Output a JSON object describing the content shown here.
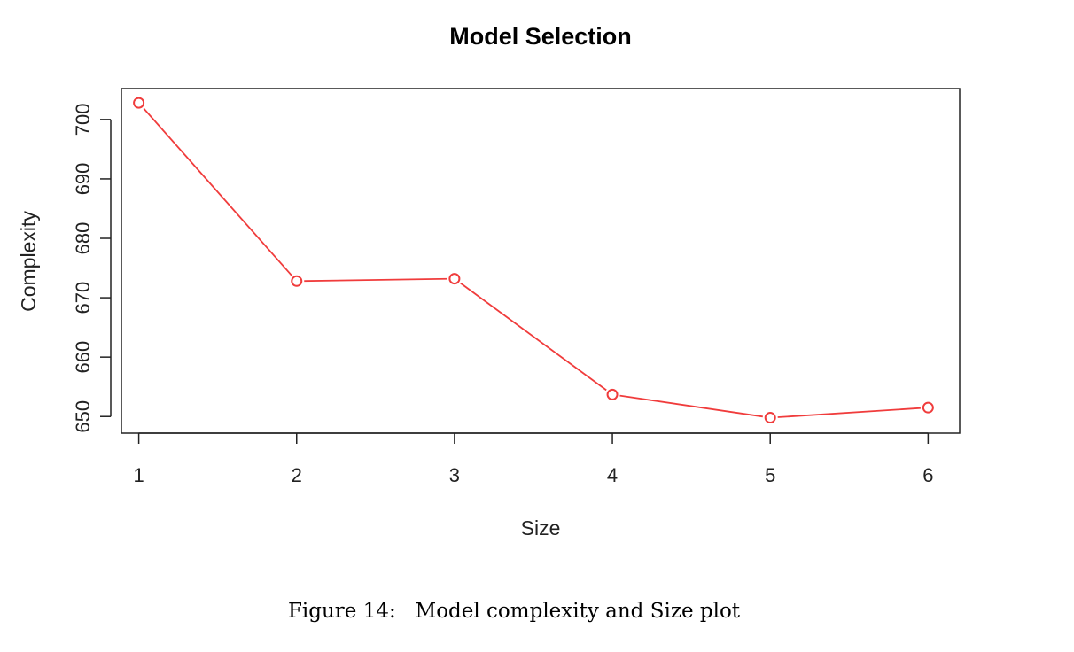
{
  "caption": "Figure 14:   Model complexity and Size plot",
  "chart_data": {
    "type": "line",
    "title": "Model Selection",
    "xlabel": "Size",
    "ylabel": "Complexity",
    "x": [
      1,
      2,
      3,
      4,
      5,
      6
    ],
    "series": [
      {
        "values": [
          702.8,
          672.8,
          673.2,
          653.7,
          649.8,
          651.5
        ]
      }
    ],
    "x_ticks": [
      1,
      2,
      3,
      4,
      5,
      6
    ],
    "y_ticks": [
      650,
      660,
      670,
      680,
      690,
      700
    ],
    "xlim": [
      0.89,
      6.2
    ],
    "ylim": [
      647.2,
      705.2
    ],
    "grid": false,
    "marker": "open-circle",
    "line_color": "#f03c3c"
  }
}
